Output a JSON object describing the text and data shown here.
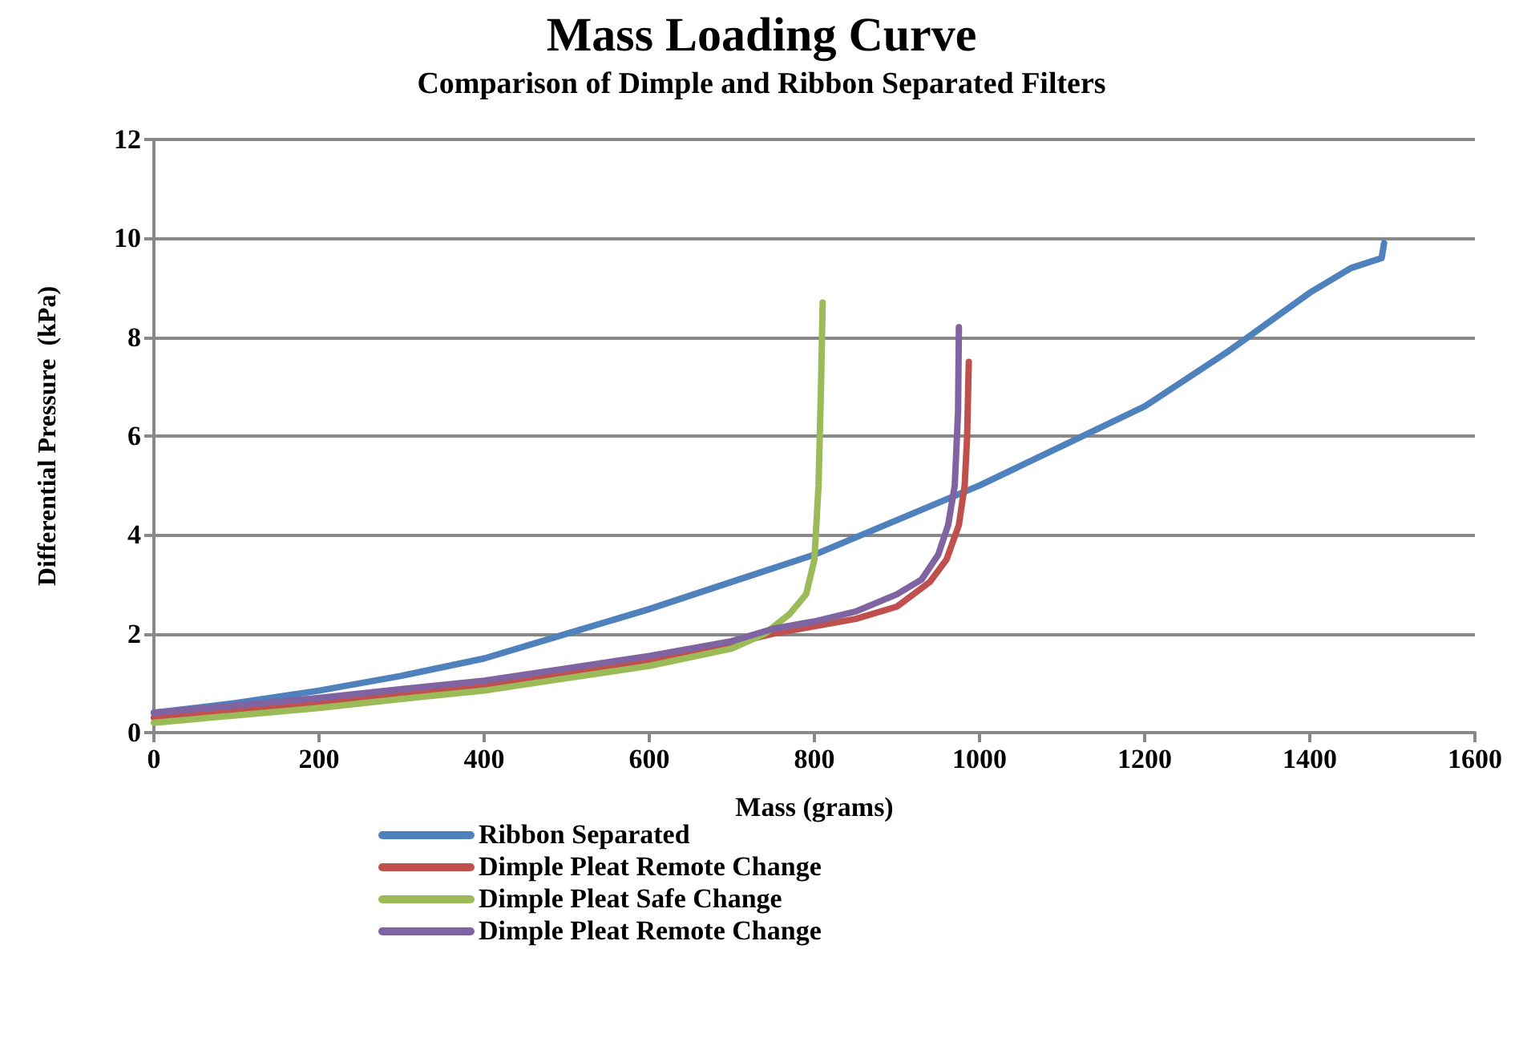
{
  "chart_data": {
    "type": "line",
    "title": "Mass Loading Curve",
    "subtitle": "Comparison of Dimple and Ribbon Separated Filters",
    "xlabel": "Mass (grams)",
    "ylabel": "Differential Pressure  (kPa)",
    "xlim": [
      0,
      1600
    ],
    "xticks": [
      0,
      200,
      400,
      600,
      800,
      1000,
      1200,
      1400,
      1600
    ],
    "ylim": [
      0,
      12
    ],
    "yticks": [
      0,
      2,
      4,
      6,
      8,
      10,
      12
    ],
    "grid": "y",
    "legend": "bottom",
    "marker": "none",
    "line_style": "solid",
    "series": [
      {
        "name": "Ribbon Separated",
        "color": "#4f81bd",
        "x": [
          0,
          100,
          200,
          300,
          400,
          500,
          600,
          700,
          800,
          900,
          1000,
          1100,
          1200,
          1300,
          1400,
          1450,
          1487,
          1490
        ],
        "values": [
          0.4,
          0.6,
          0.85,
          1.15,
          1.5,
          2.0,
          2.5,
          3.05,
          3.6,
          4.3,
          5.0,
          5.8,
          6.6,
          7.7,
          8.9,
          9.4,
          9.6,
          9.9
        ]
      },
      {
        "name": "Dimple Pleat Remote Change",
        "color": "#c0504d",
        "x": [
          0,
          100,
          200,
          300,
          400,
          500,
          600,
          700,
          750,
          800,
          850,
          900,
          920,
          940,
          960,
          975,
          982,
          985,
          987
        ],
        "values": [
          0.3,
          0.45,
          0.6,
          0.78,
          0.95,
          1.2,
          1.45,
          1.8,
          2.0,
          2.15,
          2.3,
          2.55,
          2.8,
          3.05,
          3.5,
          4.2,
          5.0,
          6.0,
          7.5
        ]
      },
      {
        "name": "Dimple Pleat Safe Change",
        "color": "#9bbb59",
        "x": [
          0,
          100,
          200,
          300,
          400,
          500,
          600,
          700,
          740,
          770,
          790,
          800,
          805,
          808,
          810
        ],
        "values": [
          0.2,
          0.35,
          0.5,
          0.68,
          0.85,
          1.1,
          1.35,
          1.7,
          2.0,
          2.4,
          2.8,
          3.5,
          5.0,
          7.0,
          8.7
        ]
      },
      {
        "name": "Dimple Pleat Remote Change",
        "color": "#8064a2",
        "x": [
          0,
          100,
          200,
          300,
          400,
          500,
          600,
          700,
          750,
          800,
          850,
          900,
          930,
          950,
          962,
          970,
          974,
          975
        ],
        "values": [
          0.4,
          0.55,
          0.7,
          0.88,
          1.05,
          1.3,
          1.55,
          1.85,
          2.1,
          2.25,
          2.45,
          2.8,
          3.1,
          3.6,
          4.2,
          5.0,
          6.5,
          8.2
        ]
      }
    ]
  }
}
